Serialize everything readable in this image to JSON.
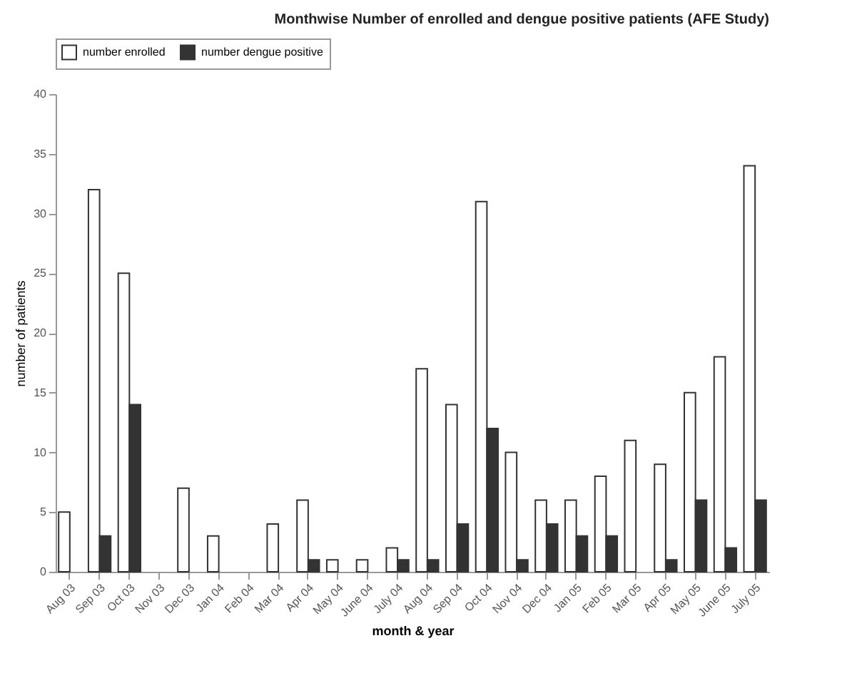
{
  "chart_data": {
    "type": "bar",
    "title": "Monthwise Number of enrolled and dengue positive patients (AFE Study)",
    "xlabel": "month & year",
    "ylabel": "number of patients",
    "categories": [
      "Aug 03",
      "Sep 03",
      "Oct 03",
      "Nov 03",
      "Dec 03",
      "Jan 04",
      "Feb 04",
      "Mar 04",
      "Apr 04",
      "May 04",
      "June 04",
      "July 04",
      "Aug 04",
      "Sep 04",
      "Oct 04",
      "Nov 04",
      "Dec 04",
      "Jan 05",
      "Feb 05",
      "Mar 05",
      "Apr 05",
      "May 05",
      "June 05",
      "July 05"
    ],
    "series": [
      {
        "name": "number enrolled",
        "color": "#ffffff",
        "values": [
          5,
          32,
          25,
          0,
          7,
          3,
          0,
          4,
          6,
          1,
          1,
          2,
          17,
          14,
          31,
          10,
          6,
          6,
          8,
          11,
          9,
          15,
          18,
          34
        ]
      },
      {
        "name": "number dengue positive",
        "color": "#333333",
        "values": [
          0,
          3,
          14,
          0,
          0,
          0,
          0,
          0,
          1,
          0,
          0,
          1,
          1,
          4,
          12,
          1,
          4,
          3,
          3,
          0,
          1,
          6,
          2,
          6
        ]
      }
    ],
    "ylim": [
      0,
      40
    ],
    "yticks": [
      0,
      5,
      10,
      15,
      20,
      25,
      30,
      35,
      40
    ],
    "grid": false,
    "legend": "top"
  }
}
